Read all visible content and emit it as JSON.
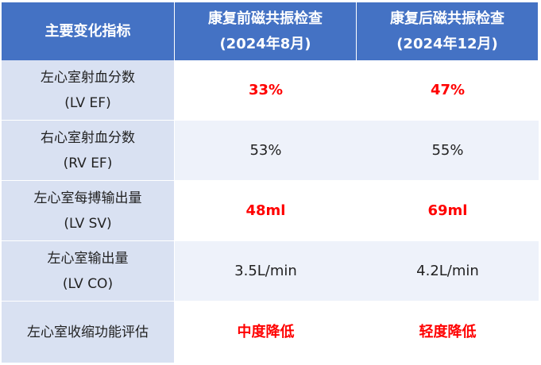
{
  "header": {
    "col0": "主要变化指标",
    "col1_line1": "康复前磁共振检查",
    "col1_line2": "(2024年8月)",
    "col2_line1": "康复后磁共振检查",
    "col2_line2": "(2024年12月)"
  },
  "rows": [
    {
      "label_line1": "左心室射血分数",
      "label_line2": "(LV EF)",
      "before": "33%",
      "after": "47%"
    },
    {
      "label_line1": "右心室射血分数",
      "label_line2": "(RV EF)",
      "before": "53%",
      "after": "55%"
    },
    {
      "label_line1": "左心室每搏输出量",
      "label_line2": "(LV SV)",
      "before": "48ml",
      "after": "69ml"
    },
    {
      "label_line1": "左心室输出量",
      "label_line2": "(LV CO)",
      "before": "3.5L/min",
      "after": "4.2L/min"
    },
    {
      "label_line1": "左心室收缩功能评估",
      "before": "中度降低",
      "after": "轻度降低"
    }
  ],
  "colors": {
    "header_bg": "#4472c4",
    "label_bg": "#d9e1f2",
    "highlight": "#ff0000"
  }
}
